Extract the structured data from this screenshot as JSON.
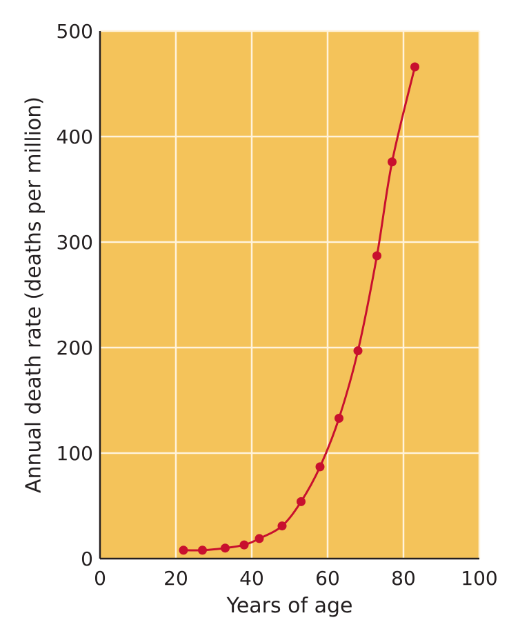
{
  "chart_data": {
    "type": "line",
    "title": "",
    "xlabel": "Years of age",
    "ylabel": "Annual death rate (deaths per million)",
    "xlim": [
      0,
      100
    ],
    "ylim": [
      0,
      500
    ],
    "xticks": [
      0,
      20,
      40,
      60,
      80,
      100
    ],
    "yticks": [
      0,
      100,
      200,
      300,
      400,
      500
    ],
    "grid": true,
    "series": [
      {
        "x": [
          22,
          27,
          33,
          38,
          42,
          48,
          53,
          58,
          63,
          68,
          73,
          77,
          83
        ],
        "y": [
          8,
          8,
          10,
          13,
          19,
          31,
          54,
          87,
          133,
          197,
          287,
          376,
          466
        ]
      }
    ],
    "colors": {
      "plot_background": "#f4c35a",
      "grid": "#fff3dc",
      "axis": "#231f20",
      "series": "#c8102e"
    }
  }
}
